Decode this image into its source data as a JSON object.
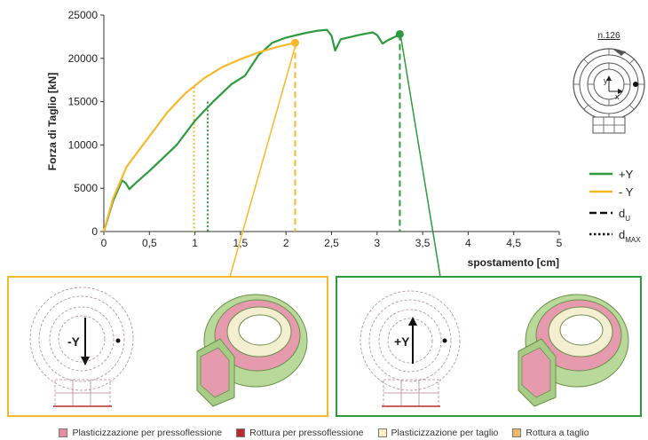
{
  "chart_data": {
    "type": "line",
    "xlabel": "spostamento [cm]",
    "ylabel": "Forza di Taglio [kN]",
    "xlim": [
      0,
      5
    ],
    "ylim": [
      0,
      25000
    ],
    "x_ticks": [
      "0",
      "0,5",
      "1",
      "1,5",
      "2",
      "2,5",
      "3",
      "3,5",
      "4",
      "4,5",
      "5"
    ],
    "y_ticks": [
      "0",
      "5000",
      "10000",
      "15000",
      "20000",
      "25000"
    ],
    "grid": false,
    "legend_position": "right",
    "series": [
      {
        "name": "+Y",
        "color": "#2e9a3e",
        "x": [
          0,
          0.1,
          0.2,
          0.24,
          0.28,
          0.35,
          0.5,
          0.8,
          1.0,
          1.2,
          1.4,
          1.55,
          1.7,
          1.85,
          2.0,
          2.2,
          2.35,
          2.45,
          2.5,
          2.54,
          2.6,
          2.8,
          2.95,
          3.0,
          3.06,
          3.12,
          3.2,
          3.25
        ],
        "y": [
          0,
          3500,
          5900,
          5600,
          4900,
          5600,
          7000,
          10000,
          12800,
          15000,
          17000,
          18000,
          20400,
          21800,
          22400,
          22900,
          23200,
          23300,
          22600,
          20900,
          22200,
          22700,
          23000,
          22700,
          21700,
          22100,
          22500,
          22800
        ]
      },
      {
        "name": "- Y",
        "color": "#f5b92b",
        "x": [
          0,
          0.1,
          0.25,
          0.45,
          0.7,
          0.9,
          1.1,
          1.3,
          1.5,
          1.7,
          1.9,
          2.1
        ],
        "y": [
          0,
          3800,
          7500,
          10300,
          13800,
          16000,
          17700,
          19000,
          19900,
          20700,
          21300,
          21800
        ]
      }
    ],
    "markers": [
      {
        "series": "+Y",
        "type": "d_U",
        "x": 3.25,
        "y": 22800
      },
      {
        "series": "- Y",
        "type": "d_U",
        "x": 2.1,
        "y": 21800
      },
      {
        "series": "+Y",
        "type": "d_MAX",
        "x": 1.14,
        "y": 15000
      },
      {
        "series": "- Y",
        "type": "d_MAX",
        "x": 0.99,
        "y": 16700
      }
    ],
    "legend": [
      {
        "label": "+Y",
        "style": "solid",
        "color": "#2e9a3e"
      },
      {
        "label": "- Y",
        "style": "solid",
        "color": "#f5b92b"
      },
      {
        "label": "d",
        "sub": "U",
        "style": "dashed",
        "color": "#111111"
      },
      {
        "label": "d",
        "sub": "MAX",
        "style": "dotted",
        "color": "#111111"
      }
    ]
  },
  "plan_label": "n.126",
  "plan_axis_y": "y",
  "plan_axis_x": "x",
  "panels": {
    "left": {
      "direction_label": "-Y",
      "border_color": "#f5b92b"
    },
    "right": {
      "direction_label": "+Y",
      "border_color": "#2e9a3e"
    }
  },
  "bottom_legend": [
    {
      "label": "Plasticizzazione per pressoflessione",
      "color": "#e58ca3"
    },
    {
      "label": "Rottura per pressoflessione",
      "color": "#c0282d"
    },
    {
      "label": "Plasticizzazione per taglio",
      "color": "#f8f0c0"
    },
    {
      "label": "Rottura a taglio",
      "color": "#eebb6b"
    }
  ]
}
